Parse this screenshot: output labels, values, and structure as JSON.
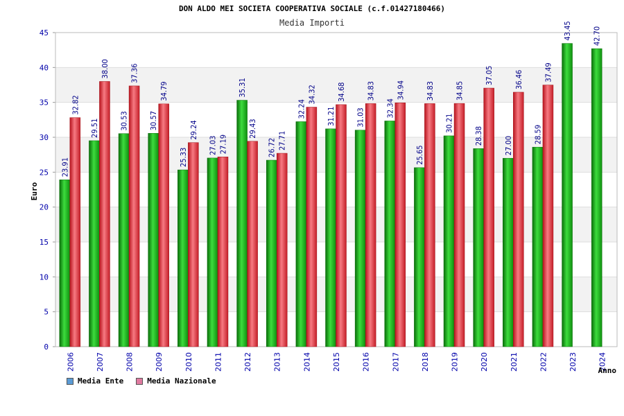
{
  "chart_data": {
    "type": "bar",
    "title": "DON ALDO MEI SOCIETA COOPERATIVA SOCIALE (c.f.01427180466)",
    "subtitle": "Media Importi",
    "ylabel": "Euro",
    "xlabel": "Anno",
    "ylim": [
      0,
      45
    ],
    "yticks": [
      "0",
      "5",
      "10",
      "15",
      "20",
      "25",
      "30",
      "35",
      "40",
      "45"
    ],
    "categories": [
      "2006",
      "2007",
      "2008",
      "2009",
      "2010",
      "2011",
      "2012",
      "2013",
      "2014",
      "2015",
      "2016",
      "2017",
      "2018",
      "2019",
      "2020",
      "2021",
      "2022",
      "2023",
      "2024"
    ],
    "series": [
      {
        "name": "Media Ente",
        "color": "#1fb81f",
        "values": [
          23.91,
          29.51,
          30.53,
          30.57,
          25.33,
          27.03,
          35.31,
          26.72,
          32.24,
          31.21,
          31.03,
          32.34,
          25.65,
          30.21,
          28.38,
          27.0,
          28.59,
          43.45,
          42.7
        ],
        "labels": [
          "23.91",
          "29.51",
          "30.53",
          "30.57",
          "25.33",
          "27.03",
          "35.31",
          "26.72",
          "32.24",
          "31.21",
          "31.03",
          "32.34",
          "25.65",
          "30.21",
          "28.38",
          "27.00",
          "28.59",
          "43.45",
          "42.70"
        ]
      },
      {
        "name": "Media Nazionale",
        "color": "#e8303c",
        "values": [
          32.82,
          38.0,
          37.36,
          34.79,
          29.24,
          27.19,
          29.43,
          27.71,
          34.32,
          34.68,
          34.83,
          34.94,
          34.83,
          34.85,
          37.05,
          36.46,
          37.49,
          null,
          null
        ],
        "labels": [
          "32.82",
          "38.00",
          "37.36",
          "34.79",
          "29.24",
          "27.19",
          "29.43",
          "27.71",
          "34.32",
          "34.68",
          "34.83",
          "34.94",
          "34.83",
          "34.85",
          "37.05",
          "36.46",
          "37.49",
          null,
          null
        ]
      }
    ],
    "legend_colors": [
      "#5b9bd5",
      "#e07aa0"
    ],
    "grid": true,
    "legend_position": "bottom-left"
  }
}
